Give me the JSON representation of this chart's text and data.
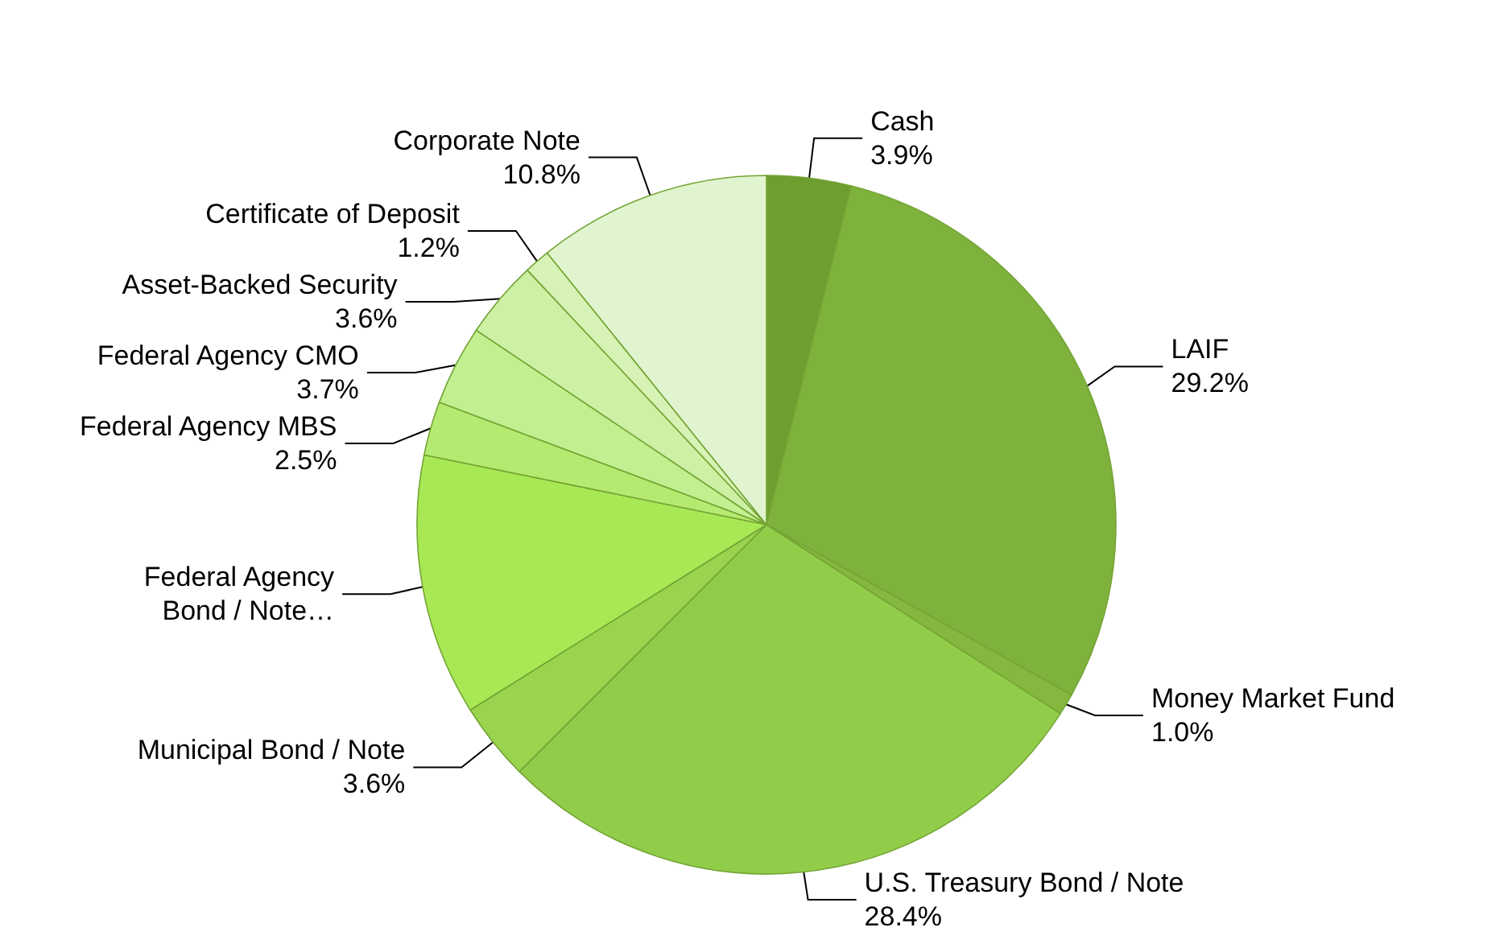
{
  "chart_data": {
    "type": "pie",
    "categories": [
      "Cash",
      "LAIF",
      "Money Market Fund",
      "U.S. Treasury Bond / Note",
      "Municipal Bond / Note",
      "Federal Agency\nBond / Note…",
      "Federal Agency MBS",
      "Federal Agency CMO",
      "Asset-Backed Security",
      "Certificate of Deposit",
      "Corporate Note"
    ],
    "values": [
      3.9,
      29.2,
      1.0,
      28.4,
      3.6,
      12.1,
      2.5,
      3.7,
      3.6,
      1.2,
      10.8
    ],
    "value_labels": [
      "3.9%",
      "29.2%",
      "1.0%",
      "28.4%",
      "3.6%",
      null,
      "2.5%",
      "3.7%",
      "3.6%",
      "1.2%",
      "10.8%"
    ],
    "colors": [
      "#6e9e30",
      "#7fb13d",
      "#86b840",
      "#92cd4a",
      "#9ad44e",
      "#a8e855",
      "#b5ea70",
      "#c2ef90",
      "#cdf0a5",
      "#d7f2b5",
      "#e0f5cf"
    ],
    "legend": false
  }
}
